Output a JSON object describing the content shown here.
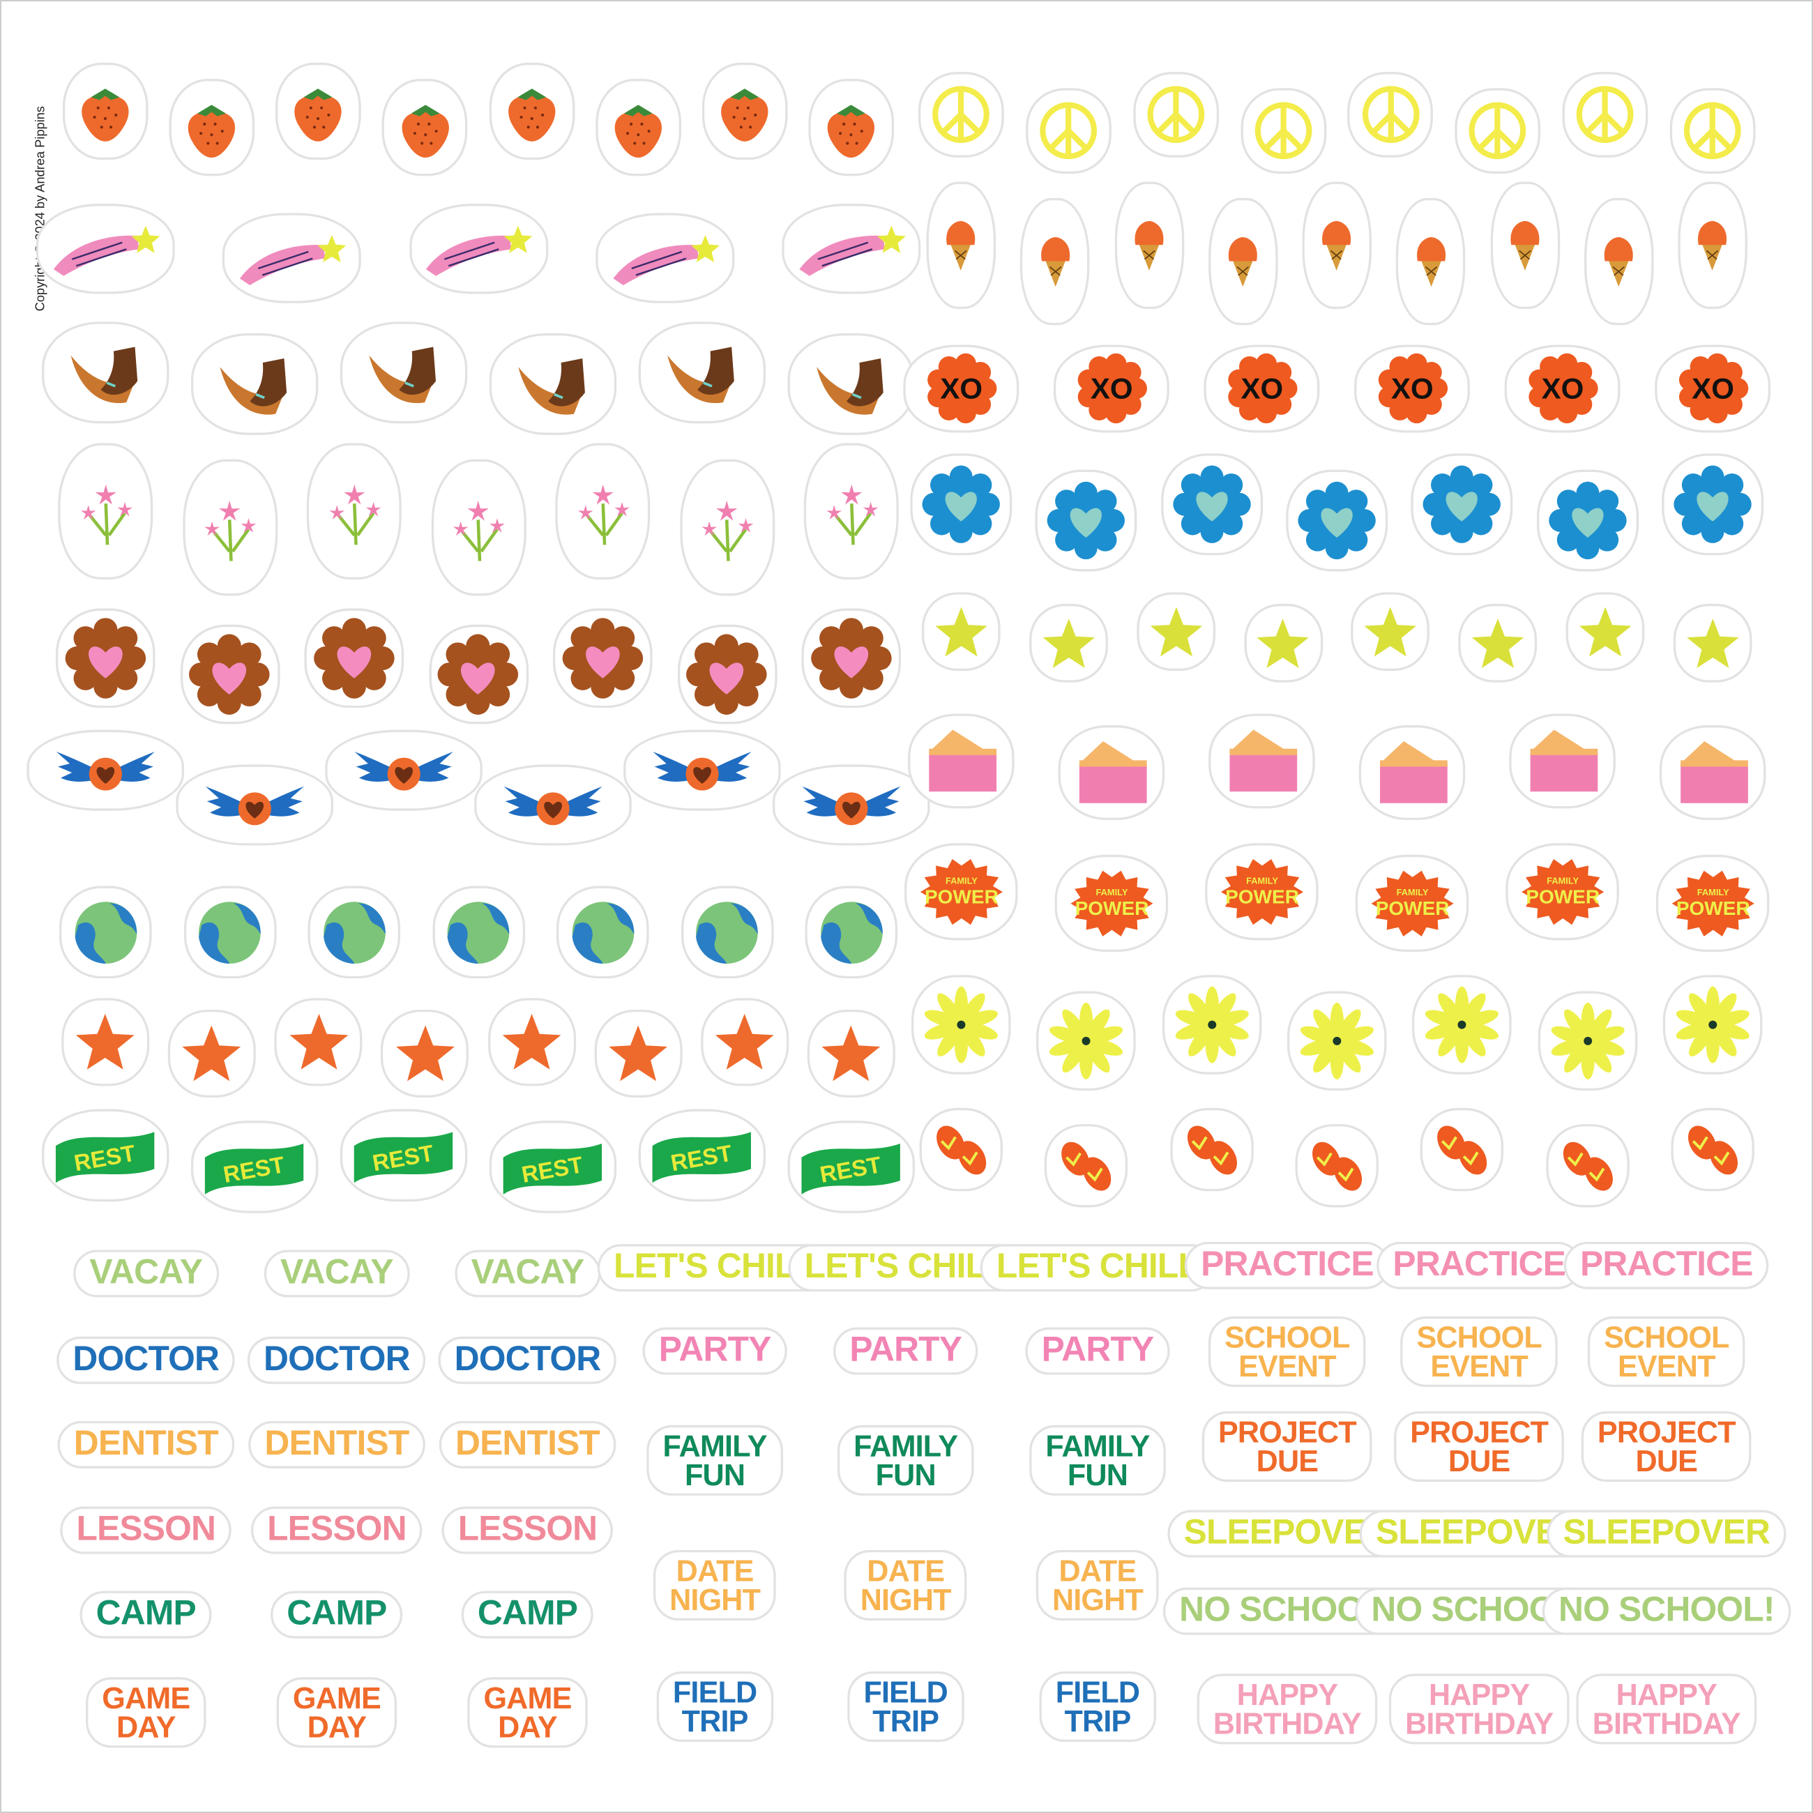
{
  "copyright": "Copyright © 2024 by Andrea Pippins",
  "picture_stickers": {
    "left": [
      {
        "kind": "strawberry",
        "count": 8
      },
      {
        "kind": "shooting-star",
        "count": 5
      },
      {
        "kind": "hands",
        "count": 6
      },
      {
        "kind": "pink-flower",
        "count": 7
      },
      {
        "kind": "heart-flower",
        "count": 7
      },
      {
        "kind": "winged-heart",
        "count": 6
      },
      {
        "kind": "earth",
        "count": 7
      },
      {
        "kind": "orange-star",
        "count": 8
      },
      {
        "kind": "rest-banner",
        "count": 6,
        "label": "REST"
      }
    ],
    "right": [
      {
        "kind": "peace-sign",
        "count": 8
      },
      {
        "kind": "ice-cream",
        "count": 9
      },
      {
        "kind": "xo",
        "count": 6,
        "label": "XO"
      },
      {
        "kind": "blue-heart-flower",
        "count": 7
      },
      {
        "kind": "yellow-star",
        "count": 8
      },
      {
        "kind": "pie-slice",
        "count": 6
      },
      {
        "kind": "family-power",
        "count": 6,
        "label_top": "FAMILY",
        "label_bottom": "POWER"
      },
      {
        "kind": "daisy",
        "count": 7
      },
      {
        "kind": "flip-flops",
        "count": 7
      }
    ]
  },
  "word_stickers": {
    "column_1": [
      {
        "lines": [
          "VACAY"
        ],
        "color": "#a9cf7a"
      },
      {
        "lines": [
          "DOCTOR"
        ],
        "color": "#1f6fb8"
      },
      {
        "lines": [
          "DENTIST"
        ],
        "color": "#f7b34f"
      },
      {
        "lines": [
          "LESSON"
        ],
        "color": "#f08a9a"
      },
      {
        "lines": [
          "CAMP"
        ],
        "color": "#14916a"
      },
      {
        "lines": [
          "GAME",
          "DAY"
        ],
        "color": "#f06a2a"
      }
    ],
    "column_2": [
      {
        "lines": [
          "LET'S CHILL"
        ],
        "color": "#d8e23a"
      },
      {
        "lines": [
          "PARTY"
        ],
        "color": "#f284b4"
      },
      {
        "lines": [
          "FAMILY",
          "FUN"
        ],
        "color": "#0f8a5a"
      },
      {
        "lines": [
          "DATE",
          "NIGHT"
        ],
        "color": "#f7b34f"
      },
      {
        "lines": [
          "FIELD",
          "TRIP"
        ],
        "color": "#1f6fb8"
      }
    ],
    "column_3": [
      {
        "lines": [
          "PRACTICE"
        ],
        "color": "#f48fb0"
      },
      {
        "lines": [
          "SCHOOL",
          "EVENT"
        ],
        "color": "#f7b34f"
      },
      {
        "lines": [
          "PROJECT",
          "DUE"
        ],
        "color": "#f06a2a"
      },
      {
        "lines": [
          "SLEEPOVER"
        ],
        "color": "#d8e23a"
      },
      {
        "lines": [
          "NO SCHOOL!"
        ],
        "color": "#a9cf7a"
      },
      {
        "lines": [
          "HAPPY",
          "BIRTHDAY"
        ],
        "color": "#f4a0b8"
      }
    ]
  },
  "colors": {
    "sticker_border": "#e2e2e2",
    "orange": "#ee6a2c",
    "pink": "#f07fb0",
    "yellow": "#eef04a",
    "blue": "#1c8fd0",
    "green": "#1aa84a",
    "brown": "#a5521f"
  }
}
